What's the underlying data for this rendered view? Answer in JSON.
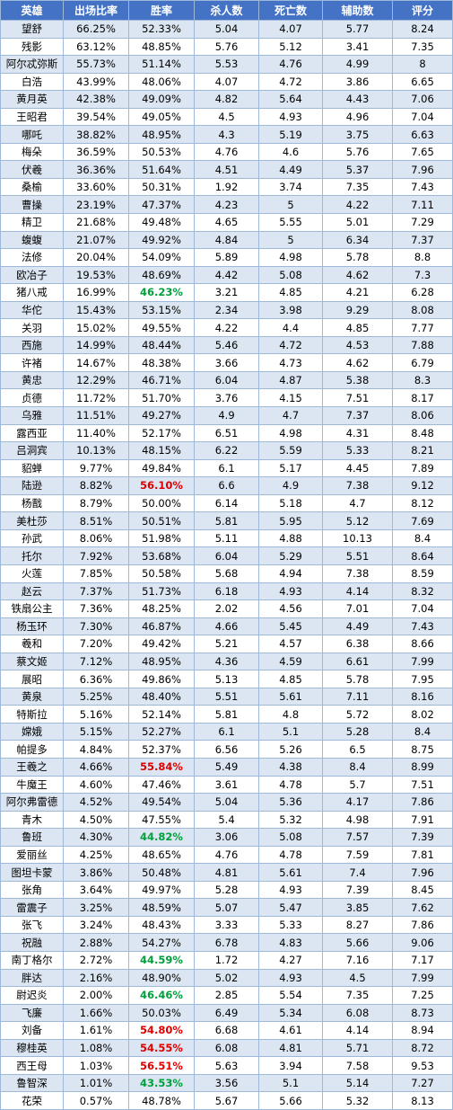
{
  "headers": [
    "英雄",
    "出场比率",
    "胜率",
    "杀人数",
    "死亡数",
    "辅助数",
    "评分"
  ],
  "rows": [
    [
      "望舒",
      "66.25%",
      "52.33%",
      "5.04",
      "4.07",
      "5.77",
      "8.24",
      ""
    ],
    [
      "残影",
      "63.12%",
      "48.85%",
      "5.76",
      "5.12",
      "3.41",
      "7.35",
      ""
    ],
    [
      "阿尔忒弥斯",
      "55.73%",
      "51.14%",
      "5.53",
      "4.76",
      "4.99",
      "8",
      ""
    ],
    [
      "白浩",
      "43.99%",
      "48.06%",
      "4.07",
      "4.72",
      "3.86",
      "6.65",
      ""
    ],
    [
      "黄月英",
      "42.38%",
      "49.09%",
      "4.82",
      "5.64",
      "4.43",
      "7.06",
      ""
    ],
    [
      "王昭君",
      "39.54%",
      "49.05%",
      "4.5",
      "4.93",
      "4.96",
      "7.04",
      ""
    ],
    [
      "哪吒",
      "38.82%",
      "48.95%",
      "4.3",
      "5.19",
      "3.75",
      "6.63",
      ""
    ],
    [
      "梅朵",
      "36.59%",
      "50.53%",
      "4.76",
      "4.6",
      "5.76",
      "7.65",
      ""
    ],
    [
      "伏羲",
      "36.36%",
      "51.64%",
      "4.51",
      "4.49",
      "5.37",
      "7.96",
      ""
    ],
    [
      "桑榆",
      "33.60%",
      "50.31%",
      "1.92",
      "3.74",
      "7.35",
      "7.43",
      ""
    ],
    [
      "曹操",
      "23.19%",
      "47.37%",
      "4.23",
      "5",
      "4.22",
      "7.11",
      ""
    ],
    [
      "精卫",
      "21.68%",
      "49.48%",
      "4.65",
      "5.55",
      "5.01",
      "7.29",
      ""
    ],
    [
      "蝮蝮",
      "21.07%",
      "49.92%",
      "4.84",
      "5",
      "6.34",
      "7.37",
      ""
    ],
    [
      "法修",
      "20.04%",
      "54.09%",
      "5.89",
      "4.98",
      "5.78",
      "8.8",
      ""
    ],
    [
      "欧冶子",
      "19.53%",
      "48.69%",
      "4.42",
      "5.08",
      "4.62",
      "7.3",
      ""
    ],
    [
      "猪八戒",
      "16.99%",
      "46.23%",
      "3.21",
      "4.85",
      "4.21",
      "6.28",
      "lo"
    ],
    [
      "华佗",
      "15.43%",
      "53.15%",
      "2.34",
      "3.98",
      "9.29",
      "8.08",
      ""
    ],
    [
      "关羽",
      "15.02%",
      "49.55%",
      "4.22",
      "4.4",
      "4.85",
      "7.77",
      ""
    ],
    [
      "西施",
      "14.99%",
      "48.44%",
      "5.46",
      "4.72",
      "4.53",
      "7.88",
      ""
    ],
    [
      "许褚",
      "14.67%",
      "48.38%",
      "3.66",
      "4.73",
      "4.62",
      "6.79",
      ""
    ],
    [
      "黄忠",
      "12.29%",
      "46.71%",
      "6.04",
      "4.87",
      "5.38",
      "8.3",
      ""
    ],
    [
      "贞德",
      "11.72%",
      "51.70%",
      "3.76",
      "4.15",
      "7.51",
      "8.17",
      ""
    ],
    [
      "乌雅",
      "11.51%",
      "49.27%",
      "4.9",
      "4.7",
      "7.37",
      "8.06",
      ""
    ],
    [
      "露西亚",
      "11.40%",
      "52.17%",
      "6.51",
      "4.98",
      "4.31",
      "8.48",
      ""
    ],
    [
      "吕洞宾",
      "10.13%",
      "48.15%",
      "6.22",
      "5.59",
      "5.33",
      "8.21",
      ""
    ],
    [
      "貂蝉",
      "9.77%",
      "49.84%",
      "6.1",
      "5.17",
      "4.45",
      "7.89",
      ""
    ],
    [
      "陆逊",
      "8.82%",
      "56.10%",
      "6.6",
      "4.9",
      "7.38",
      "9.12",
      "hi"
    ],
    [
      "杨戬",
      "8.79%",
      "50.00%",
      "6.14",
      "5.18",
      "4.7",
      "8.12",
      ""
    ],
    [
      "美杜莎",
      "8.51%",
      "50.51%",
      "5.81",
      "5.95",
      "5.12",
      "7.69",
      ""
    ],
    [
      "孙武",
      "8.06%",
      "51.98%",
      "5.11",
      "4.88",
      "10.13",
      "8.4",
      ""
    ],
    [
      "托尔",
      "7.92%",
      "53.68%",
      "6.04",
      "5.29",
      "5.51",
      "8.64",
      ""
    ],
    [
      "火莲",
      "7.85%",
      "50.58%",
      "5.68",
      "4.94",
      "7.38",
      "8.59",
      ""
    ],
    [
      "赵云",
      "7.37%",
      "51.73%",
      "6.18",
      "4.93",
      "4.14",
      "8.32",
      ""
    ],
    [
      "铁扇公主",
      "7.36%",
      "48.25%",
      "2.02",
      "4.56",
      "7.01",
      "7.04",
      ""
    ],
    [
      "杨玉环",
      "7.30%",
      "46.87%",
      "4.66",
      "5.45",
      "4.49",
      "7.43",
      ""
    ],
    [
      "羲和",
      "7.20%",
      "49.42%",
      "5.21",
      "4.57",
      "6.38",
      "8.66",
      ""
    ],
    [
      "蔡文姬",
      "7.12%",
      "48.95%",
      "4.36",
      "4.59",
      "6.61",
      "7.99",
      ""
    ],
    [
      "展昭",
      "6.36%",
      "49.86%",
      "5.13",
      "4.85",
      "5.78",
      "7.95",
      ""
    ],
    [
      "黄泉",
      "5.25%",
      "48.40%",
      "5.51",
      "5.61",
      "7.11",
      "8.16",
      ""
    ],
    [
      "特斯拉",
      "5.16%",
      "52.14%",
      "5.81",
      "4.8",
      "5.72",
      "8.02",
      ""
    ],
    [
      "嫦娥",
      "5.15%",
      "52.27%",
      "6.1",
      "5.1",
      "5.28",
      "8.4",
      ""
    ],
    [
      "帕提多",
      "4.84%",
      "52.37%",
      "6.56",
      "5.26",
      "6.5",
      "8.75",
      ""
    ],
    [
      "王羲之",
      "4.66%",
      "55.84%",
      "5.49",
      "4.38",
      "8.4",
      "8.99",
      "hi"
    ],
    [
      "牛魔王",
      "4.60%",
      "47.46%",
      "3.61",
      "4.78",
      "5.7",
      "7.51",
      ""
    ],
    [
      "阿尔弗雷德",
      "4.52%",
      "49.54%",
      "5.04",
      "5.36",
      "4.17",
      "7.86",
      ""
    ],
    [
      "青木",
      "4.50%",
      "47.55%",
      "5.4",
      "5.32",
      "4.98",
      "7.91",
      ""
    ],
    [
      "鲁班",
      "4.30%",
      "44.82%",
      "3.06",
      "5.08",
      "7.57",
      "7.39",
      "lo"
    ],
    [
      "爱丽丝",
      "4.25%",
      "48.65%",
      "4.76",
      "4.78",
      "7.59",
      "7.81",
      ""
    ],
    [
      "图坦卡蒙",
      "3.86%",
      "50.48%",
      "4.81",
      "5.61",
      "7.4",
      "7.96",
      ""
    ],
    [
      "张角",
      "3.64%",
      "49.97%",
      "5.28",
      "4.93",
      "7.39",
      "8.45",
      ""
    ],
    [
      "雷震子",
      "3.25%",
      "48.59%",
      "5.07",
      "5.47",
      "3.85",
      "7.62",
      ""
    ],
    [
      "张飞",
      "3.24%",
      "48.43%",
      "3.33",
      "5.33",
      "8.27",
      "7.86",
      ""
    ],
    [
      "祝融",
      "2.88%",
      "54.27%",
      "6.78",
      "4.83",
      "5.66",
      "9.06",
      ""
    ],
    [
      "南丁格尔",
      "2.72%",
      "44.59%",
      "1.72",
      "4.27",
      "7.16",
      "7.17",
      "lo"
    ],
    [
      "胖达",
      "2.16%",
      "48.90%",
      "5.02",
      "4.93",
      "4.5",
      "7.99",
      ""
    ],
    [
      "尉迟炎",
      "2.00%",
      "46.46%",
      "2.85",
      "5.54",
      "7.35",
      "7.25",
      "lo"
    ],
    [
      "飞廉",
      "1.66%",
      "50.03%",
      "6.49",
      "5.34",
      "6.08",
      "8.73",
      ""
    ],
    [
      "刘备",
      "1.61%",
      "54.80%",
      "6.68",
      "4.61",
      "4.14",
      "8.94",
      "hi"
    ],
    [
      "穆桂英",
      "1.08%",
      "54.55%",
      "6.08",
      "4.81",
      "5.71",
      "8.72",
      "hi"
    ],
    [
      "西王母",
      "1.03%",
      "56.51%",
      "5.63",
      "3.94",
      "7.58",
      "9.53",
      "hi"
    ],
    [
      "鲁智深",
      "1.01%",
      "43.53%",
      "3.56",
      "5.1",
      "5.14",
      "7.27",
      "lo"
    ],
    [
      "花荣",
      "0.57%",
      "48.78%",
      "5.67",
      "5.66",
      "5.32",
      "8.13",
      ""
    ]
  ],
  "colors": {
    "header_bg": "#4472c4",
    "stripe": "#dce6f2",
    "high_win": "#e00000",
    "low_win": "#00a03c"
  }
}
